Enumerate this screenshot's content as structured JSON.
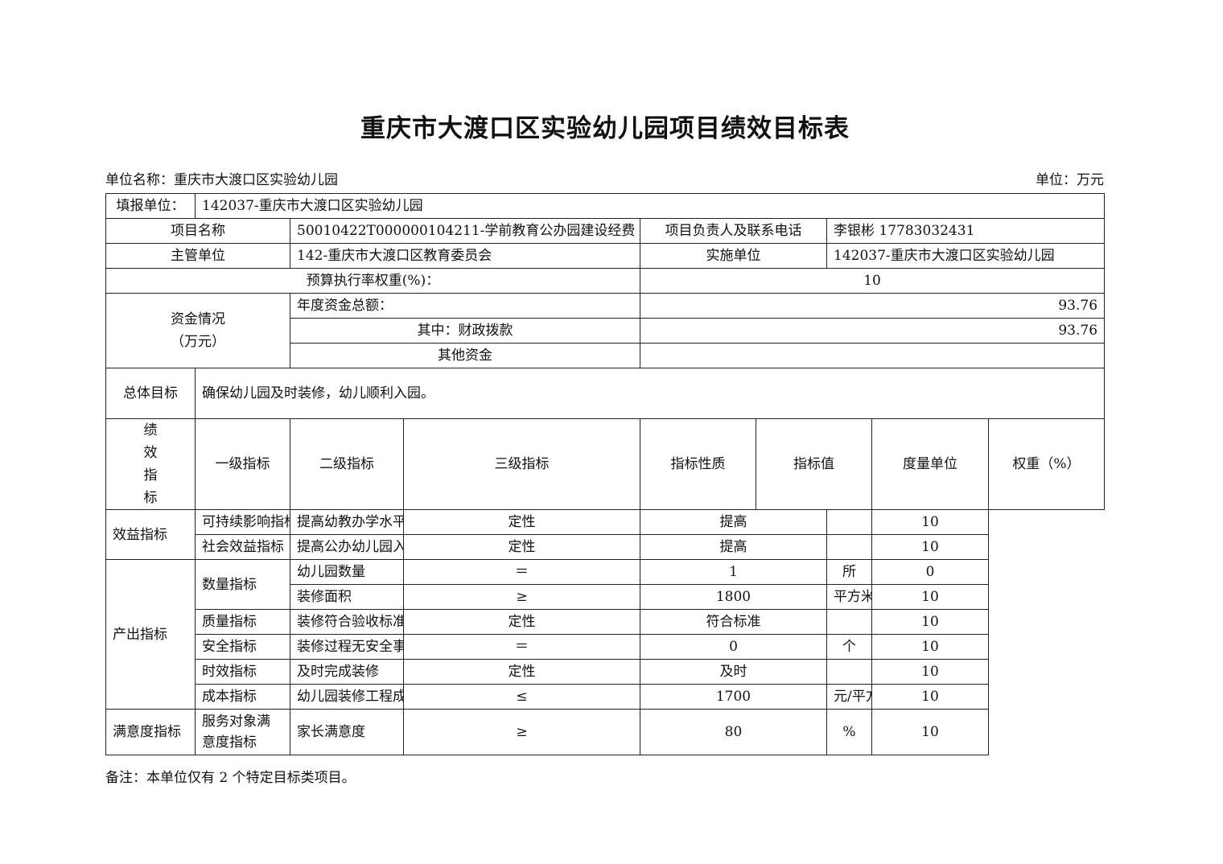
{
  "title": "重庆市大渡口区实验幼儿园项目绩效目标表",
  "unit_name_label": "单位名称：重庆市大渡口区实验幼儿园",
  "unit_label": "单位：万元",
  "info": {
    "filler_label": "填报单位：",
    "filler_value": "142037-重庆市大渡口区实验幼儿园",
    "project_name_label": "项目名称",
    "project_name_value": "50010422T000000104211-学前教育公办园建设经费",
    "contact_label": "项目负责人及联系电话",
    "contact_value": "李银彬 17783032431",
    "supervisor_label": "主管单位",
    "supervisor_value": "142-重庆市大渡口区教育委员会",
    "implementer_label": "实施单位",
    "implementer_value": "142037-重庆市大渡口区实验幼儿园",
    "budget_rate_label": "预算执行率权重(%)：",
    "budget_rate_value": "10"
  },
  "funds": {
    "label_line1": "资金情况",
    "label_line2": "（万元）",
    "total_label": "年度资金总额：",
    "total_value": "93.76",
    "fiscal_label": "其中：财政拨款",
    "fiscal_value": "93.76",
    "other_label": "其他资金",
    "other_value": ""
  },
  "goal": {
    "label": "总体目标",
    "value": "确保幼儿园及时装修，幼儿顺利入园。"
  },
  "indicators": {
    "label_chars": [
      "绩",
      "效",
      "指",
      "标"
    ],
    "headers": [
      "一级指标",
      "二级指标",
      "三级指标",
      "指标性质",
      "指标值",
      "度量单位",
      "权重（%）"
    ],
    "groups": {
      "benefit": "效益指标",
      "output": "产出指标",
      "satisfaction": "满意度指标",
      "quantity": "数量指标"
    },
    "rows": [
      {
        "l2": "可持续影响指标",
        "l3": "提高幼教办学水平",
        "nature": "定性",
        "value": "提高",
        "unit": "",
        "weight": "10"
      },
      {
        "l2": "社会效益指标",
        "l3": "提高公办幼儿园入园比例",
        "nature": "定性",
        "value": "提高",
        "unit": "",
        "weight": "10"
      },
      {
        "l2": "数量指标",
        "l3": "幼儿园数量",
        "nature": "＝",
        "value": "1",
        "unit": "所",
        "weight": "0"
      },
      {
        "l2": "",
        "l3": "装修面积",
        "nature": "≥",
        "value": "1800",
        "unit": "平方米",
        "weight": "10"
      },
      {
        "l2": "质量指标",
        "l3": "装修符合验收标准",
        "nature": "定性",
        "value": "符合标准",
        "unit": "",
        "weight": "10"
      },
      {
        "l2": "安全指标",
        "l3": "装修过程无安全事故",
        "nature": "＝",
        "value": "0",
        "unit": "个",
        "weight": "10"
      },
      {
        "l2": "时效指标",
        "l3": "及时完成装修",
        "nature": "定性",
        "value": "及时",
        "unit": "",
        "weight": "10"
      },
      {
        "l2": "成本指标",
        "l3": "幼儿园装修工程成本标准",
        "nature": "≤",
        "value": "1700",
        "unit": "元/平方米",
        "weight": "10"
      },
      {
        "l2": "服务对象满意度指标",
        "l3": "家长满意度",
        "nature": "≥",
        "value": "80",
        "unit": "%",
        "weight": "10"
      }
    ]
  },
  "note": "备注：本单位仅有 2 个特定目标类项目。"
}
